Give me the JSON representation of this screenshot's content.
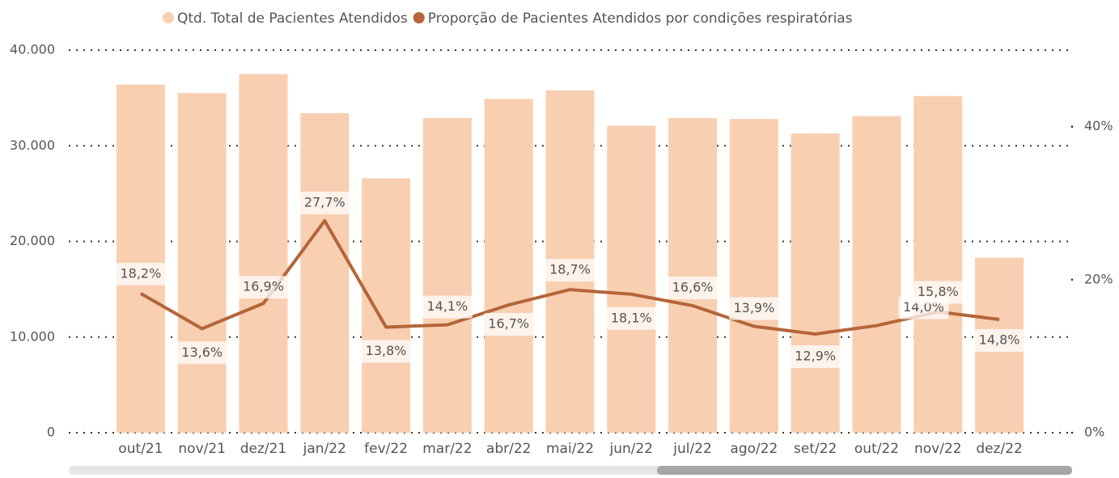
{
  "chart_data": {
    "type": "bar-line",
    "categories": [
      "out/21",
      "nov/21",
      "dez/21",
      "jan/22",
      "fev/22",
      "mar/22",
      "abr/22",
      "mai/22",
      "jun/22",
      "jul/22",
      "ago/22",
      "set/22",
      "out/22",
      "nov/22",
      "dez/22"
    ],
    "series": [
      {
        "name": "Qtd. Total de Pacientes Atendidos",
        "color": "#f8cfb1",
        "type": "bar",
        "values": [
          36400,
          35500,
          37500,
          33400,
          26600,
          32900,
          34900,
          35800,
          32100,
          32900,
          32800,
          31300,
          33100,
          35200,
          18300
        ]
      },
      {
        "name": "Proporção de Pacientes Atendidos por condições respiratórias",
        "color": "#b5653a",
        "type": "line",
        "axis": "y2",
        "values": [
          18.2,
          13.6,
          16.9,
          27.7,
          13.8,
          14.1,
          16.7,
          18.7,
          18.1,
          16.6,
          13.9,
          12.9,
          14.0,
          15.8,
          14.8
        ],
        "value_labels": [
          "18,2%",
          "13,6%",
          "16,9%",
          "27,7%",
          "13,8%",
          "14,1%",
          "16,7%",
          "18,7%",
          "18,1%",
          "16,6%",
          "13,9%",
          "12,9%",
          "14,0%",
          "15,8%",
          "14,8%"
        ]
      }
    ],
    "ylim": [
      0,
      40000
    ],
    "yticks": [
      0,
      {
        "value": 10000,
        "label": "10.000"
      },
      {
        "value": 20000,
        "label": "20.000"
      },
      {
        "value": 30000,
        "label": "30.000"
      },
      {
        "value": 40000,
        "label": "40.000"
      }
    ],
    "y2lim": [
      0,
      50
    ],
    "y2ticks": [
      {
        "value": 0,
        "label": "0%"
      },
      {
        "value": 20,
        "label": "20%"
      },
      {
        "value": 40,
        "label": "40%"
      }
    ],
    "grid": true
  }
}
